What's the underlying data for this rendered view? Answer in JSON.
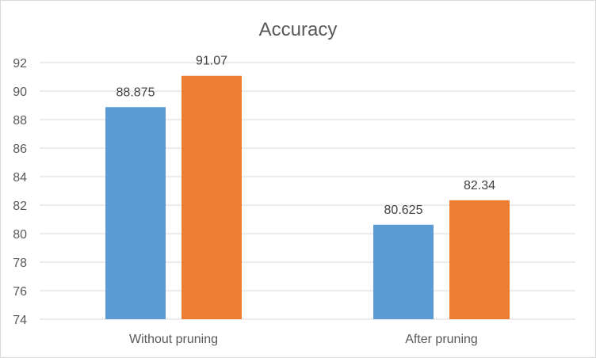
{
  "chart_data": {
    "type": "bar",
    "title": "Accuracy",
    "xlabel": "",
    "ylabel": "",
    "categories": [
      "Without pruning",
      "After pruning"
    ],
    "series": [
      {
        "values": [
          88.875,
          80.625
        ],
        "labels": [
          "88.875",
          "80.625"
        ],
        "color": "#5b9bd5"
      },
      {
        "values": [
          91.07,
          82.34
        ],
        "labels": [
          "91.07",
          "82.34"
        ],
        "color": "#ed7d31"
      }
    ],
    "ylim": [
      74,
      92
    ],
    "yticks": [
      "74",
      "76",
      "78",
      "80",
      "82",
      "84",
      "86",
      "88",
      "90",
      "92"
    ],
    "grid": true,
    "legend": "none"
  }
}
